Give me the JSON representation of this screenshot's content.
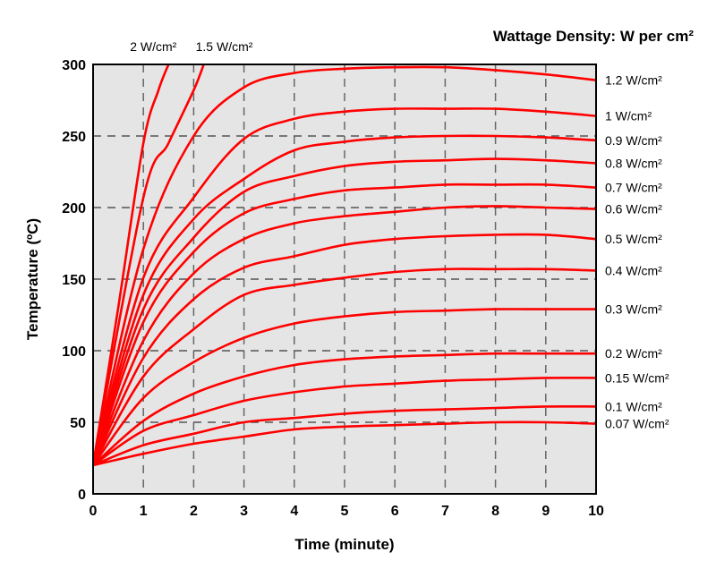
{
  "chart_data": {
    "type": "line",
    "title": "Wattage Density: W per cm²",
    "xlabel": "Time (minute)",
    "ylabel": "Temperature (ºC)",
    "xlim": [
      0,
      10
    ],
    "ylim": [
      0,
      300
    ],
    "xticks": [
      "0",
      "1",
      "2",
      "3",
      "4",
      "5",
      "6",
      "7",
      "8",
      "9",
      "10"
    ],
    "yticks": [
      "0",
      "50",
      "100",
      "150",
      "200",
      "250",
      "300"
    ],
    "grid": true,
    "line_color": "#ff0000",
    "background_color": "#e5e5e5",
    "series": [
      {
        "name": "0.07 W/cm²",
        "x": [
          0,
          1,
          2,
          3,
          4,
          5,
          6,
          7,
          8,
          9,
          10
        ],
        "y": [
          20,
          28,
          35,
          40,
          45,
          47,
          48,
          49,
          50,
          50,
          49
        ]
      },
      {
        "name": "0.1 W/cm²",
        "x": [
          0,
          1,
          2,
          3,
          4,
          5,
          6,
          7,
          8,
          9,
          10
        ],
        "y": [
          20,
          34,
          42,
          50,
          53,
          56,
          58,
          59,
          60,
          61,
          61
        ]
      },
      {
        "name": "0.15 W/cm²",
        "x": [
          0,
          1,
          2,
          3,
          4,
          5,
          6,
          7,
          8,
          9,
          10
        ],
        "y": [
          20,
          44,
          55,
          65,
          71,
          75,
          77,
          79,
          80,
          81,
          81
        ]
      },
      {
        "name": "0.2 W/cm²",
        "x": [
          0,
          1,
          2,
          3,
          4,
          5,
          6,
          7,
          8,
          9,
          10
        ],
        "y": [
          20,
          51,
          70,
          82,
          90,
          94,
          96,
          97,
          98,
          98,
          98
        ]
      },
      {
        "name": "0.3 W/cm²",
        "x": [
          0,
          1,
          2,
          3,
          4,
          5,
          6,
          7,
          8,
          9,
          10
        ],
        "y": [
          20,
          67,
          92,
          109,
          119,
          124,
          127,
          128,
          129,
          129,
          129
        ]
      },
      {
        "name": "0.4 W/cm²",
        "x": [
          0,
          1,
          2,
          3,
          4,
          5,
          6,
          7,
          8,
          9,
          10
        ],
        "y": [
          20,
          82,
          115,
          139,
          146,
          151,
          155,
          157,
          157,
          157,
          156
        ]
      },
      {
        "name": "0.5 W/cm²",
        "x": [
          0,
          1,
          2,
          3,
          4,
          5,
          6,
          7,
          8,
          9,
          10
        ],
        "y": [
          20,
          95,
          136,
          158,
          166,
          174,
          178,
          180,
          181,
          181,
          178
        ]
      },
      {
        "name": "0.6 W/cm²",
        "x": [
          0,
          1,
          2,
          3,
          4,
          5,
          6,
          7,
          8,
          9,
          10
        ],
        "y": [
          20,
          107,
          154,
          178,
          189,
          194,
          197,
          200,
          201,
          200,
          199
        ]
      },
      {
        "name": "0.7 W/cm²",
        "x": [
          0,
          1,
          2,
          3,
          4,
          5,
          6,
          7,
          8,
          9,
          10
        ],
        "y": [
          20,
          120,
          169,
          196,
          206,
          212,
          214,
          216,
          216,
          216,
          214
        ]
      },
      {
        "name": "0.8 W/cm²",
        "x": [
          0,
          1,
          2,
          3,
          4,
          5,
          6,
          7,
          8,
          9,
          10
        ],
        "y": [
          20,
          129,
          179,
          211,
          222,
          229,
          232,
          233,
          234,
          233,
          231
        ]
      },
      {
        "name": "0.9 W/cm²",
        "x": [
          0,
          1,
          2,
          3,
          4,
          5,
          6,
          7,
          8,
          9,
          10
        ],
        "y": [
          20,
          139,
          192,
          220,
          240,
          246,
          249,
          250,
          250,
          249,
          247
        ]
      },
      {
        "name": "1 W/cm²",
        "x": [
          0,
          1,
          2,
          3,
          4,
          5,
          6,
          7,
          8,
          9,
          10
        ],
        "y": [
          20,
          151,
          207,
          248,
          262,
          267,
          269,
          269,
          269,
          267,
          264
        ]
      },
      {
        "name": "1.2 W/cm²",
        "x": [
          0,
          1,
          2,
          3,
          4,
          5,
          6,
          7,
          8,
          9,
          10
        ],
        "y": [
          20,
          171,
          250,
          284,
          294,
          297,
          298,
          298,
          296,
          293,
          289
        ]
      },
      {
        "name": "1.5 W/cm²",
        "x": [
          0,
          1,
          1.5,
          2,
          2.2
        ],
        "y": [
          20,
          207,
          245,
          282,
          300
        ]
      },
      {
        "name": "2 W/cm²",
        "x": [
          0,
          0.5,
          1,
          1.3,
          1.5
        ],
        "y": [
          20,
          130,
          245,
          282,
          300
        ]
      }
    ]
  }
}
